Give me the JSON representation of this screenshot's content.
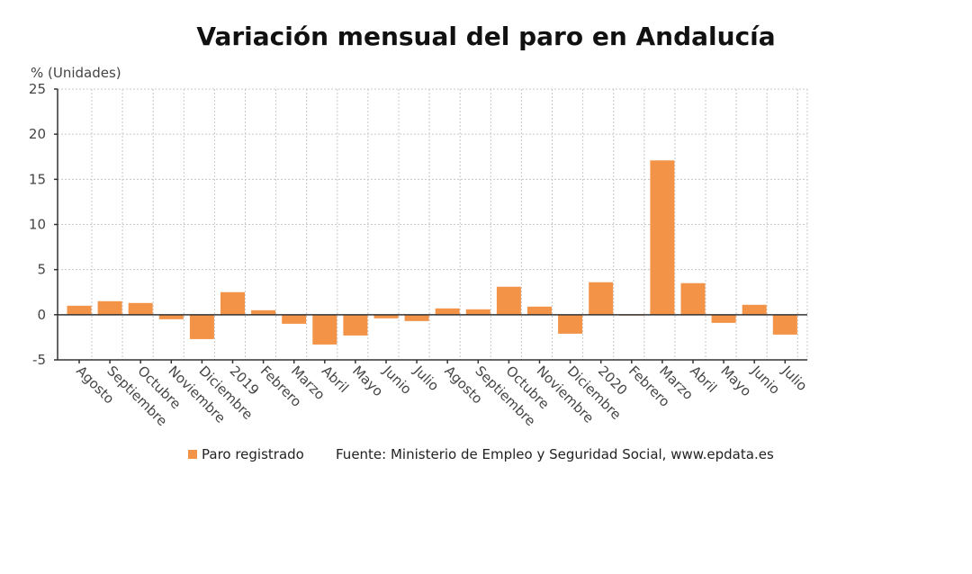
{
  "chart_data": {
    "type": "bar",
    "title": "Variación mensual del paro en Andalucía",
    "xlabel": "",
    "ylabel": "% (Unidades)",
    "ylim": [
      -5,
      25
    ],
    "yticks": [
      -5,
      0,
      5,
      10,
      15,
      20,
      25
    ],
    "grid": true,
    "legend": "bottom",
    "categories": [
      "Agosto",
      "Septiembre",
      "Octubre",
      "Noviembre",
      "Diciembre",
      "2019",
      "Febrero",
      "Marzo",
      "Abril",
      "Mayo",
      "Junio",
      "Julio",
      "Agosto",
      "Septiembre",
      "Octubre",
      "Noviembre",
      "Diciembre",
      "2020",
      "Febrero",
      "Marzo",
      "Abril",
      "Mayo",
      "Junio",
      "Julio"
    ],
    "series": [
      {
        "name": "Paro registrado",
        "color": "#f39348",
        "values": [
          1.0,
          1.5,
          1.3,
          -0.5,
          -2.7,
          2.5,
          0.5,
          -1.0,
          -3.3,
          -2.3,
          -0.4,
          -0.7,
          0.7,
          0.6,
          3.1,
          0.9,
          -2.1,
          3.6,
          0.0,
          17.1,
          3.5,
          -0.9,
          1.1,
          -2.2
        ]
      }
    ],
    "source": "Fuente: Ministerio de Empleo y Seguridad Social, www.epdata.es"
  }
}
